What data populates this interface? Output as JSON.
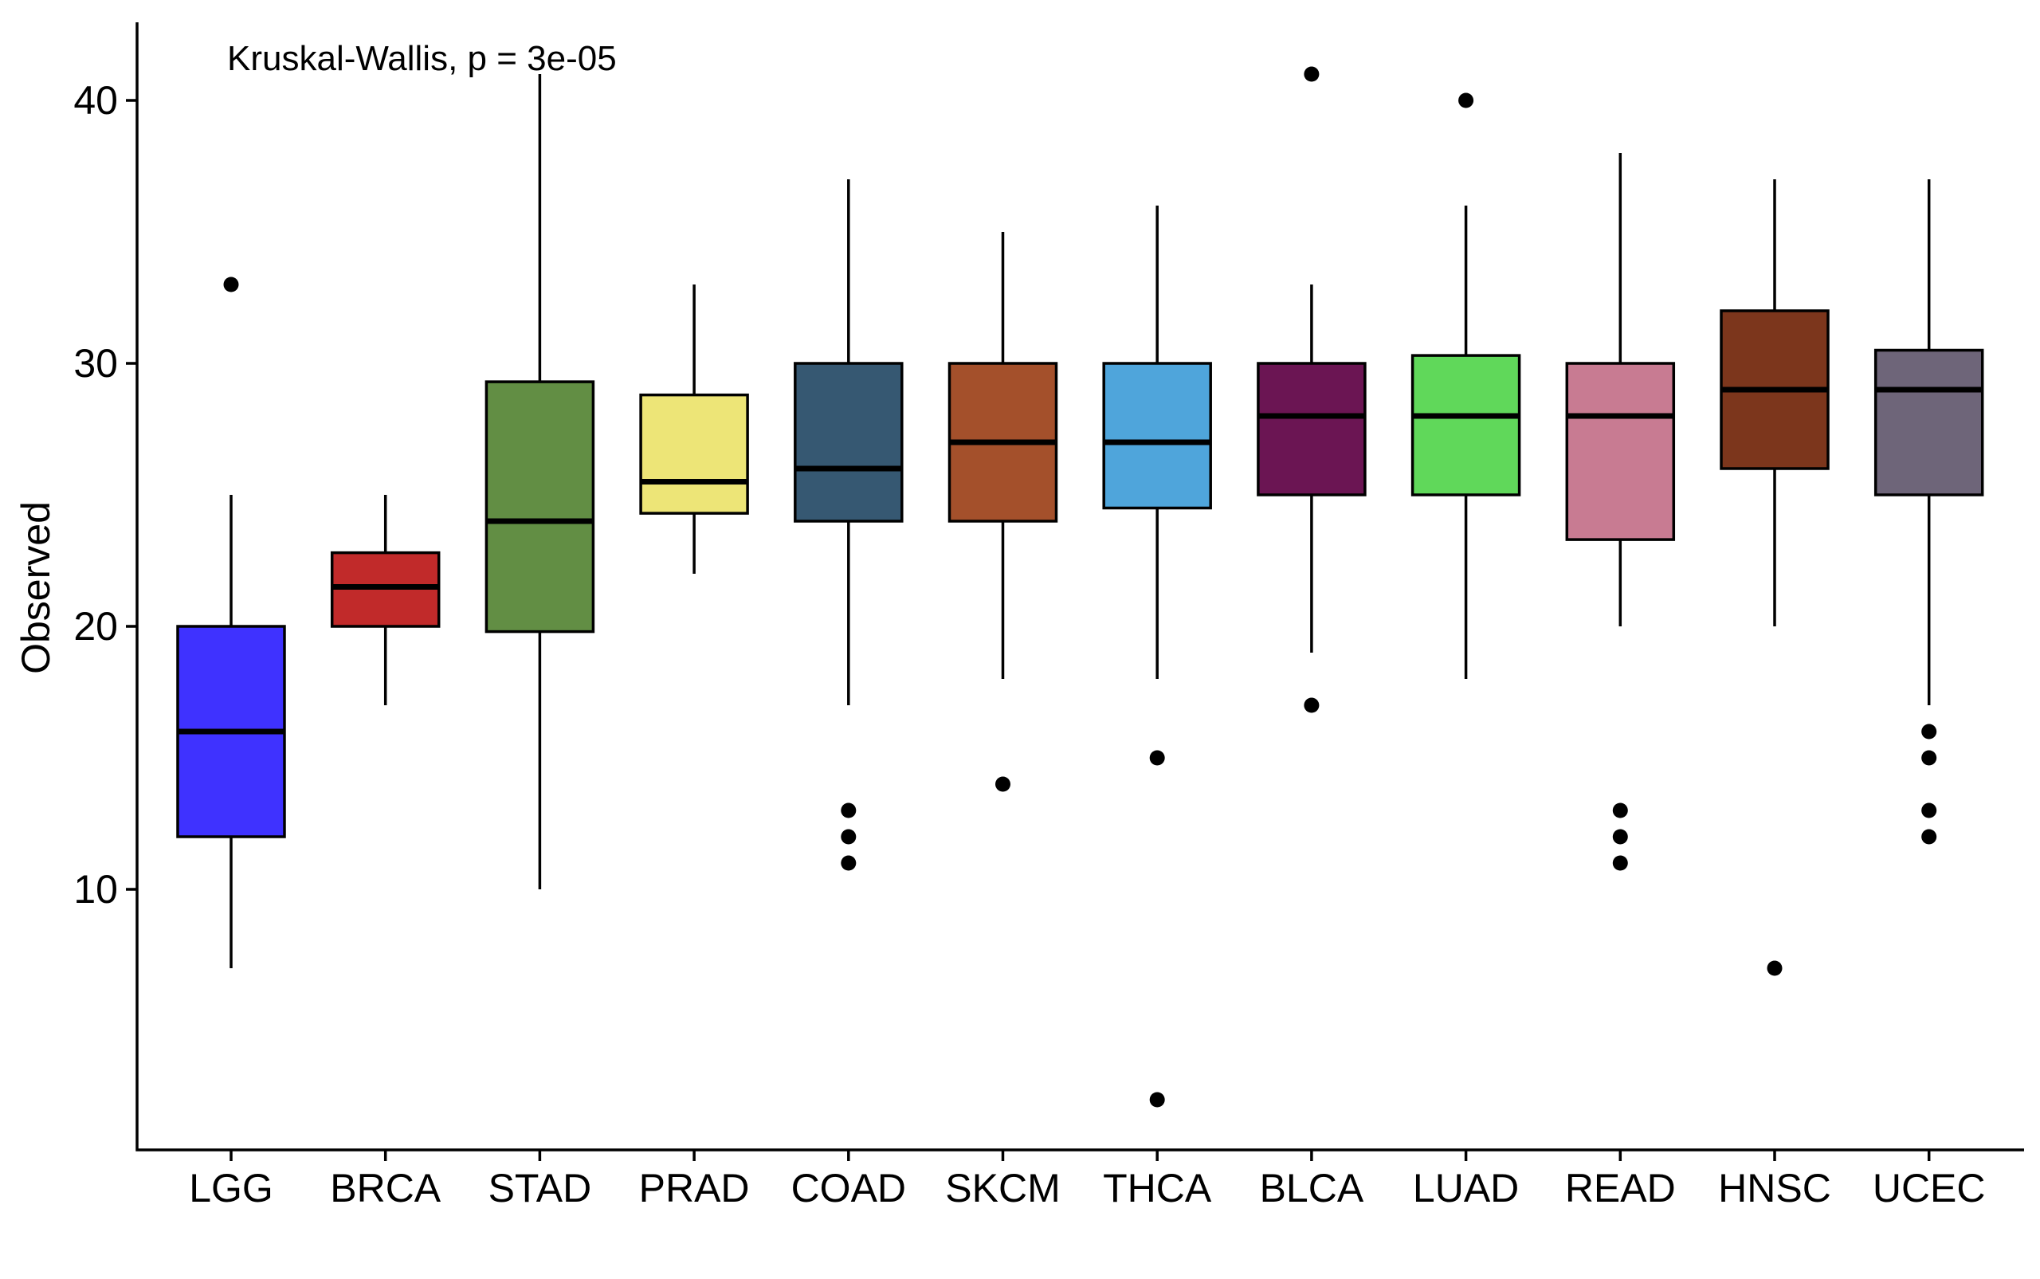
{
  "chart_data": {
    "type": "boxplot",
    "ylabel": "Observed",
    "xlabel": "",
    "annotation": "Kruskal-Wallis, p = 3e-05",
    "ylim": [
      0,
      43
    ],
    "yticks": [
      10,
      20,
      30,
      40
    ],
    "grid": false,
    "legend": "none",
    "categories": [
      "LGG",
      "BRCA",
      "STAD",
      "PRAD",
      "COAD",
      "SKCM",
      "THCA",
      "BLCA",
      "LUAD",
      "READ",
      "HNSC",
      "UCEC"
    ],
    "boxes": [
      {
        "name": "LGG",
        "color": "#3f32ff",
        "whisker_low": 7,
        "q1": 12,
        "median": 16,
        "q3": 20,
        "whisker_high": 25,
        "outliers": [
          33
        ]
      },
      {
        "name": "BRCA",
        "color": "#c12a2a",
        "whisker_low": 17,
        "q1": 20,
        "median": 21.5,
        "q3": 22.8,
        "whisker_high": 25,
        "outliers": []
      },
      {
        "name": "STAD",
        "color": "#628e44",
        "whisker_low": 10,
        "q1": 19.8,
        "median": 24,
        "q3": 29.3,
        "whisker_high": 41,
        "outliers": []
      },
      {
        "name": "PRAD",
        "color": "#ede577",
        "whisker_low": 22,
        "q1": 24.3,
        "median": 25.5,
        "q3": 28.8,
        "whisker_high": 33,
        "outliers": []
      },
      {
        "name": "COAD",
        "color": "#365872",
        "whisker_low": 17,
        "q1": 24,
        "median": 26,
        "q3": 30,
        "whisker_high": 37,
        "outliers": [
          13,
          12,
          11
        ]
      },
      {
        "name": "SKCM",
        "color": "#a4502b",
        "whisker_low": 18,
        "q1": 24,
        "median": 27,
        "q3": 30,
        "whisker_high": 35,
        "outliers": [
          14
        ]
      },
      {
        "name": "THCA",
        "color": "#4fa5db",
        "whisker_low": 18,
        "q1": 24.5,
        "median": 27,
        "q3": 30,
        "whisker_high": 36,
        "outliers": [
          15,
          2
        ]
      },
      {
        "name": "BLCA",
        "color": "#6b1553",
        "whisker_low": 19,
        "q1": 25,
        "median": 28,
        "q3": 30,
        "whisker_high": 33,
        "outliers": [
          41,
          17
        ]
      },
      {
        "name": "LUAD",
        "color": "#60d85a",
        "whisker_low": 18,
        "q1": 25,
        "median": 28,
        "q3": 30.3,
        "whisker_high": 36,
        "outliers": [
          40
        ]
      },
      {
        "name": "READ",
        "color": "#c87b92",
        "whisker_low": 20,
        "q1": 23.3,
        "median": 28,
        "q3": 30,
        "whisker_high": 38,
        "outliers": [
          13,
          12,
          11
        ]
      },
      {
        "name": "HNSC",
        "color": "#7c361c",
        "whisker_low": 20,
        "q1": 26,
        "median": 29,
        "q3": 32,
        "whisker_high": 37,
        "outliers": [
          7
        ]
      },
      {
        "name": "UCEC",
        "color": "#6e6579",
        "whisker_low": 17,
        "q1": 25,
        "median": 29,
        "q3": 30.5,
        "whisker_high": 37,
        "outliers": [
          16,
          15,
          13,
          12
        ]
      }
    ]
  }
}
